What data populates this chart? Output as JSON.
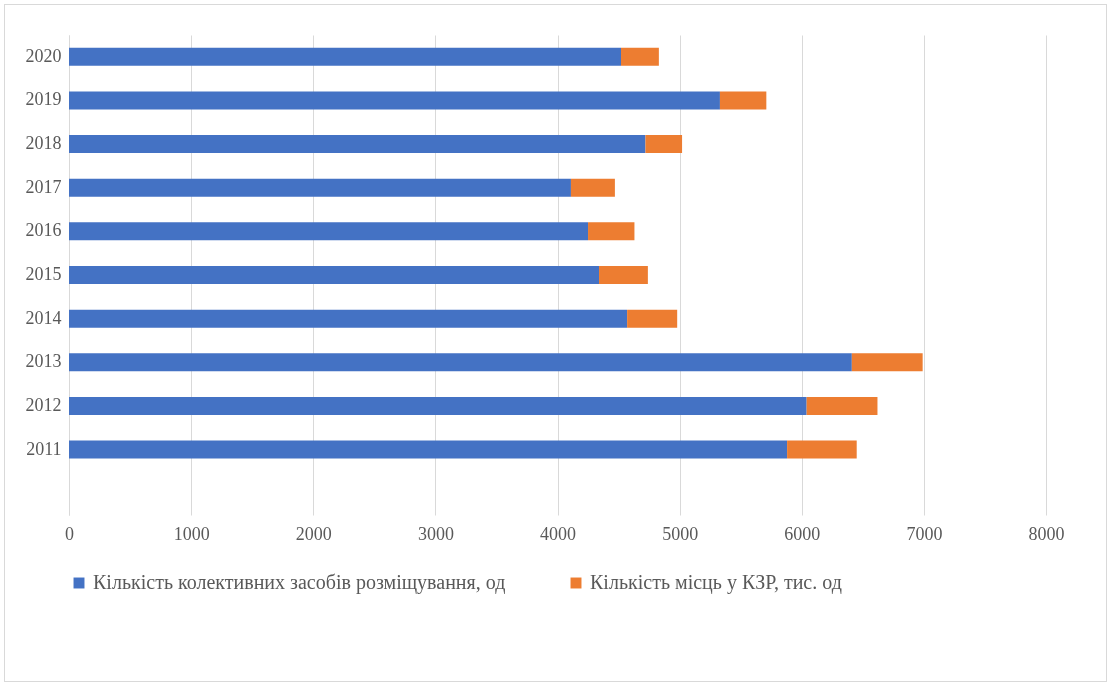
{
  "chart_data": {
    "type": "bar",
    "orientation": "horizontal",
    "stacked": true,
    "categories": [
      "2020",
      "2019",
      "2018",
      "2017",
      "2016",
      "2015",
      "2014",
      "2013",
      "2012",
      "2011",
      null
    ],
    "series": [
      {
        "name": "Кількість колективних засобів розміщування, од",
        "color": "#4472c4",
        "values": [
          4520,
          5330,
          4720,
          4110,
          4250,
          4340,
          4570,
          6410,
          6040,
          5880,
          null
        ]
      },
      {
        "name": "Кількість місць у КЗР, тис. од",
        "color": "#ed7d31",
        "values": [
          310,
          380,
          300,
          360,
          380,
          400,
          410,
          580,
          580,
          570,
          null
        ]
      }
    ],
    "xlim": [
      0,
      8000
    ],
    "xticks": [
      0,
      1000,
      2000,
      3000,
      4000,
      5000,
      6000,
      7000,
      8000
    ],
    "grid": "x",
    "legend": "bottom"
  }
}
